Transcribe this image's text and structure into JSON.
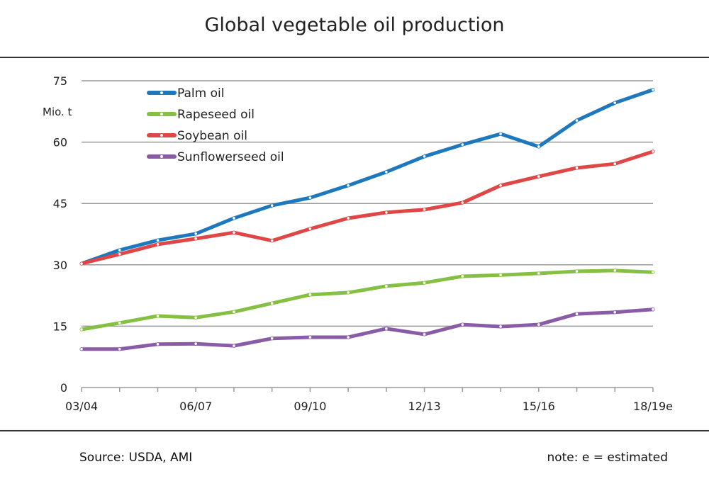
{
  "chart_data": {
    "type": "line",
    "title": "Global vegetable oil production",
    "ylabel": "Mio. t",
    "xlabel": "",
    "ylim": [
      0,
      75
    ],
    "yticks": [
      0,
      15,
      30,
      45,
      60,
      75
    ],
    "x_tick_labels": [
      "03/04",
      "06/07",
      "09/10",
      "12/13",
      "15/16",
      "18/19e"
    ],
    "x_tick_label_every": 3,
    "point_count": 16,
    "grid": "horizontal",
    "legend_position": "top-left",
    "series": [
      {
        "name": "Palm oil",
        "color": "#1d78be",
        "values": [
          30.3,
          33.6,
          36.0,
          37.6,
          41.4,
          44.5,
          46.4,
          49.4,
          52.7,
          56.5,
          59.4,
          62.0,
          58.9,
          65.3,
          69.6,
          72.8
        ]
      },
      {
        "name": "Rapeseed oil",
        "color": "#86c042",
        "values": [
          14.2,
          15.8,
          17.5,
          17.1,
          18.5,
          20.6,
          22.7,
          23.2,
          24.8,
          25.6,
          27.2,
          27.5,
          27.9,
          28.4,
          28.6,
          28.2
        ]
      },
      {
        "name": "Soybean oil",
        "color": "#e04646",
        "values": [
          30.3,
          32.6,
          35.0,
          36.4,
          37.9,
          35.9,
          38.8,
          41.4,
          42.8,
          43.5,
          45.2,
          49.4,
          51.6,
          53.7,
          54.7,
          57.7
        ]
      },
      {
        "name": "Sunflowerseed oil",
        "color": "#8a5ba6",
        "values": [
          9.4,
          9.4,
          10.6,
          10.7,
          10.2,
          12.0,
          12.3,
          12.3,
          14.4,
          13.0,
          15.4,
          14.9,
          15.4,
          18.0,
          18.4,
          19.1
        ]
      }
    ]
  },
  "footer": {
    "source": "Source: USDA, AMI",
    "note": "note: e = estimated"
  }
}
